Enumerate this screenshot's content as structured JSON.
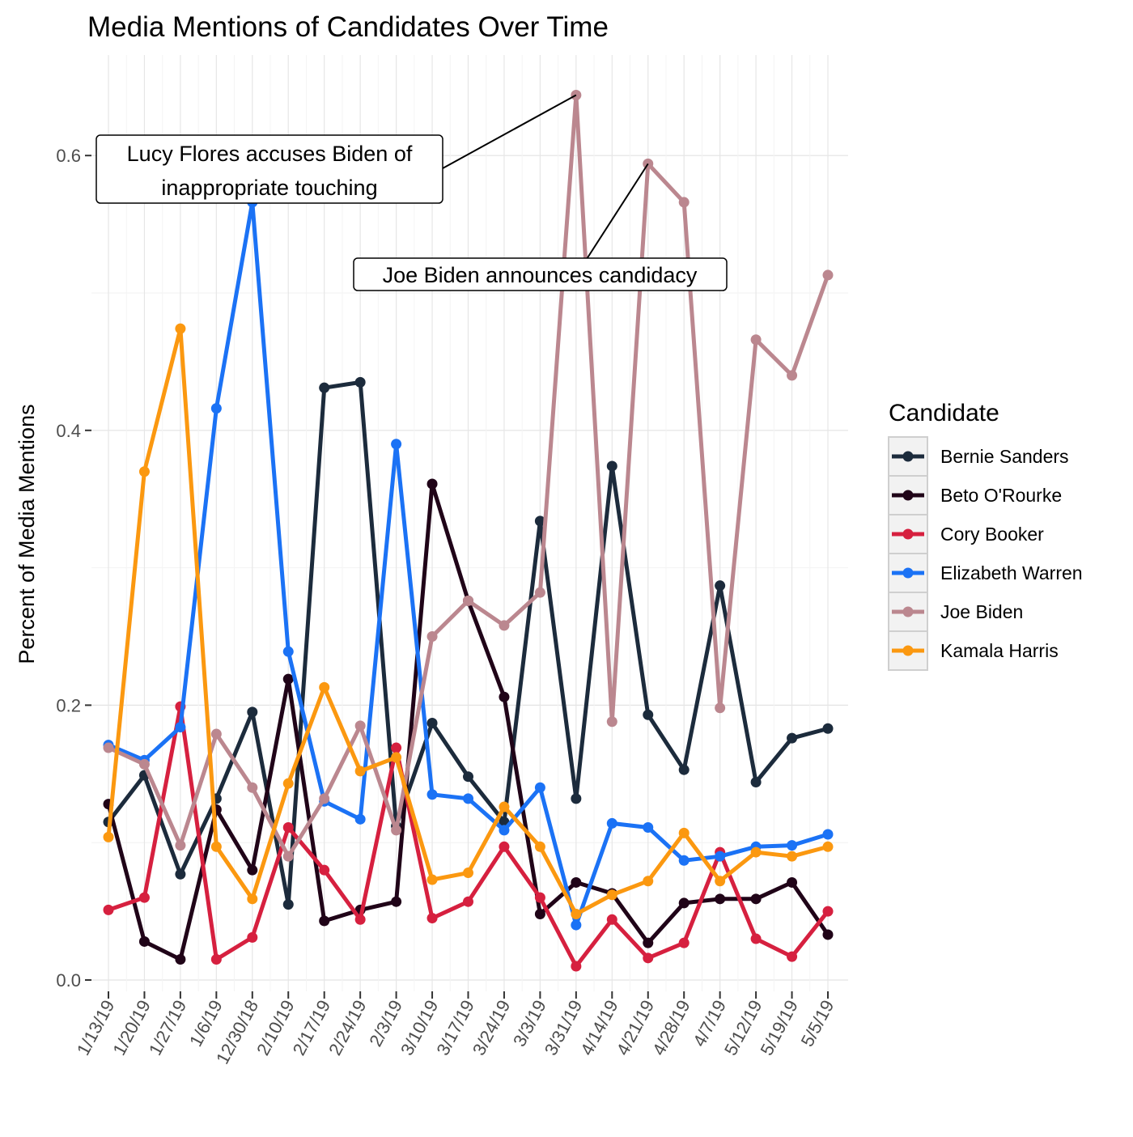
{
  "chart_data": {
    "type": "line",
    "title": "Media Mentions of Candidates Over Time",
    "xlabel": "",
    "ylabel": "Percent of Media Mentions",
    "categories": [
      "1/13/19",
      "1/20/19",
      "1/27/19",
      "1/6/19",
      "12/30/18",
      "2/10/19",
      "2/17/19",
      "2/24/19",
      "2/3/19",
      "3/10/19",
      "3/17/19",
      "3/24/19",
      "3/3/19",
      "3/31/19",
      "4/14/19",
      "4/21/19",
      "4/28/19",
      "4/7/19",
      "5/12/19",
      "5/19/19",
      "5/5/19"
    ],
    "ylim": [
      -0.008,
      0.67
    ],
    "yticks": [
      0.0,
      0.2,
      0.4,
      0.6
    ],
    "ytick_labels": [
      "0.0",
      "0.2",
      "0.4",
      "0.6"
    ],
    "grid": true,
    "legend": {
      "title": "Candidate",
      "position": "right"
    },
    "series": [
      {
        "name": "Bernie Sanders",
        "color": "#1c2b3c",
        "values": [
          0.115,
          0.149,
          0.077,
          0.132,
          0.195,
          0.055,
          0.431,
          0.435,
          0.112,
          0.187,
          0.148,
          0.115,
          0.334,
          0.132,
          0.374,
          0.193,
          0.153,
          0.287,
          0.144,
          0.176,
          0.183
        ]
      },
      {
        "name": "Beto O'Rourke",
        "color": "#200418",
        "values": [
          0.128,
          0.028,
          0.015,
          0.124,
          0.08,
          0.219,
          0.043,
          0.051,
          0.057,
          0.361,
          0.276,
          0.206,
          0.048,
          0.071,
          0.063,
          0.027,
          0.056,
          0.059,
          0.059,
          0.071,
          0.033
        ]
      },
      {
        "name": "Cory Booker",
        "color": "#d6203f",
        "values": [
          0.051,
          0.06,
          0.199,
          0.015,
          0.031,
          0.111,
          0.08,
          0.044,
          0.169,
          0.045,
          0.057,
          0.097,
          0.06,
          0.01,
          0.044,
          0.016,
          0.027,
          0.093,
          0.03,
          0.017,
          0.05
        ]
      },
      {
        "name": "Elizabeth Warren",
        "color": "#1b72f5",
        "values": [
          0.171,
          0.16,
          0.184,
          0.416,
          0.566,
          0.239,
          0.13,
          0.117,
          0.39,
          0.135,
          0.132,
          0.109,
          0.14,
          0.04,
          0.114,
          0.111,
          0.087,
          0.09,
          0.097,
          0.098,
          0.106
        ]
      },
      {
        "name": "Joe Biden",
        "color": "#bb878f",
        "values": [
          0.169,
          0.157,
          0.098,
          0.179,
          0.14,
          0.09,
          0.132,
          0.185,
          0.109,
          0.25,
          0.276,
          0.258,
          0.282,
          0.644,
          0.188,
          0.594,
          0.566,
          0.198,
          0.466,
          0.44,
          0.513
        ]
      },
      {
        "name": "Kamala Harris",
        "color": "#fb9810",
        "values": [
          0.104,
          0.37,
          0.474,
          0.097,
          0.059,
          0.143,
          0.213,
          0.152,
          0.162,
          0.073,
          0.078,
          0.126,
          0.097,
          0.048,
          0.062,
          0.072,
          0.107,
          0.072,
          0.093,
          0.09,
          0.097
        ]
      }
    ],
    "annotations": [
      {
        "text_lines": [
          "Lucy Flores accuses Biden of",
          "inappropriate touching"
        ],
        "target": {
          "x": "3/31/19",
          "y": 0.644
        }
      },
      {
        "text_lines": [
          "Joe Biden announces candidacy"
        ],
        "target": {
          "x": "4/21/19",
          "y": 0.594
        }
      }
    ]
  }
}
